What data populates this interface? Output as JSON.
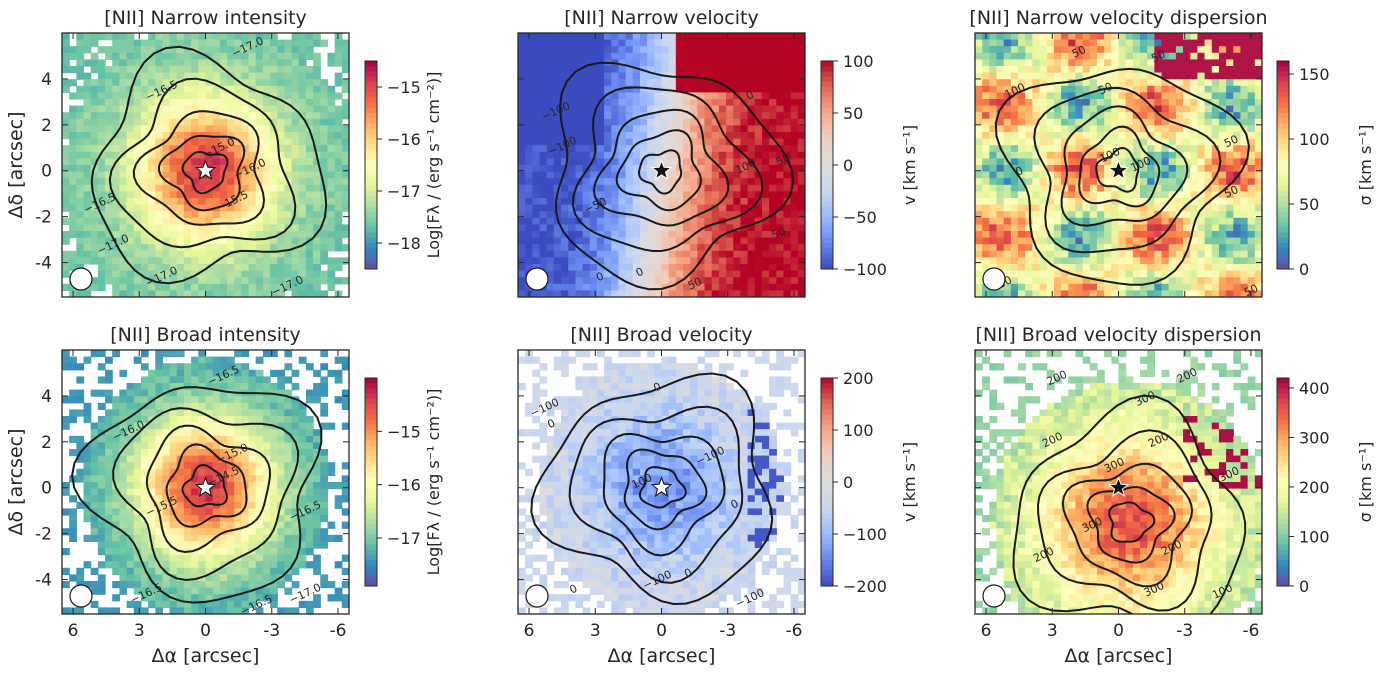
{
  "figure": {
    "tick_labels": {
      "x": [
        "6",
        "3",
        "0",
        "-3",
        "-6"
      ],
      "y": [
        "4",
        "2",
        "0",
        "-2",
        "-4"
      ]
    }
  },
  "chart_data": [
    {
      "type": "heatmap",
      "id": "p1",
      "title": "[NII] Narrow intensity",
      "ylabel": "Δδ [arcsec]",
      "xlabel": "",
      "xlim": [
        6.5,
        -6.5
      ],
      "ylim": [
        -5.5,
        6.0
      ],
      "colormap": "Spectral_r",
      "colorbar": {
        "label": "Log[Fλ / (erg s⁻¹ cm⁻²)]",
        "ticks": [
          -15,
          -16,
          -17,
          -18
        ],
        "tick_labels": [
          "−15",
          "−16",
          "−17",
          "−18"
        ],
        "vmin": -18.5,
        "vmax": -14.5
      },
      "field": {
        "kind": "peak",
        "center": [
          0,
          0
        ],
        "peak": -14.8,
        "edge": -17.6
      },
      "contour_labels": [
        {
          "text": "−15.0",
          "x": -0.6,
          "y": 1.0
        },
        {
          "text": "−15.5",
          "x": -1.2,
          "y": -1.3
        },
        {
          "text": "−16.0",
          "x": -2.0,
          "y": 0.1
        },
        {
          "text": "−16.5",
          "x": 2.0,
          "y": 3.5
        },
        {
          "text": "−17.0",
          "x": -1.9,
          "y": 5.4
        },
        {
          "text": "−16.5",
          "x": 4.8,
          "y": -1.4
        },
        {
          "text": "−17.0",
          "x": 4.2,
          "y": -3.2
        },
        {
          "text": "−17.0",
          "x": 2.0,
          "y": -4.6
        },
        {
          "text": "−17.0",
          "x": -3.7,
          "y": -5.0
        }
      ],
      "marker": {
        "symbol": "star",
        "x": 0,
        "y": 0,
        "fill": "#ffffff"
      }
    },
    {
      "type": "heatmap",
      "id": "p2",
      "title": "[NII] Narrow velocity",
      "ylabel": "",
      "xlabel": "",
      "xlim": [
        6.5,
        -6.5
      ],
      "ylim": [
        -5.5,
        6.0
      ],
      "colormap": "coolwarm",
      "colorbar": {
        "label": "v [km s⁻¹]",
        "ticks": [
          100,
          50,
          0,
          -50,
          -100
        ],
        "tick_labels": [
          "100",
          "50",
          "0",
          "−50",
          "−100"
        ],
        "vmin": -100,
        "vmax": 100
      },
      "field": {
        "kind": "velocity",
        "center": [
          0,
          0
        ],
        "amplitude": 100
      },
      "contour_labels": [
        {
          "text": "−100",
          "x": 4.8,
          "y": 2.6
        },
        {
          "text": "−100",
          "x": 4.5,
          "y": 1.1
        },
        {
          "text": "−50",
          "x": 3.0,
          "y": -1.5
        },
        {
          "text": "0",
          "x": -4.0,
          "y": 3.3
        },
        {
          "text": "0",
          "x": 2.8,
          "y": -4.6
        },
        {
          "text": "100",
          "x": -3.8,
          "y": 0.2
        },
        {
          "text": "50",
          "x": -5.5,
          "y": 0.5
        },
        {
          "text": "50",
          "x": -5.3,
          "y": -2.7
        },
        {
          "text": "50",
          "x": -1.5,
          "y": -4.9
        },
        {
          "text": "0",
          "x": 1.0,
          "y": -4.4
        }
      ],
      "marker": {
        "symbol": "star",
        "x": 0,
        "y": 0,
        "fill": "#111111"
      }
    },
    {
      "type": "heatmap",
      "id": "p3",
      "title": "[NII] Narrow velocity dispersion",
      "ylabel": "",
      "xlabel": "",
      "xlim": [
        6.5,
        -6.5
      ],
      "ylim": [
        -5.5,
        6.0
      ],
      "colormap": "Spectral_r",
      "colorbar": {
        "label": "σ [km s⁻¹]",
        "ticks": [
          150,
          100,
          50,
          0
        ],
        "tick_labels": [
          "150",
          "100",
          "50",
          "0"
        ],
        "vmin": 0,
        "vmax": 160
      },
      "field": {
        "kind": "patchy",
        "center": [
          0,
          0
        ],
        "base": 80,
        "spread": 55
      },
      "contour_labels": [
        {
          "text": "50",
          "x": 1.8,
          "y": 5.2
        },
        {
          "text": "50",
          "x": -1.8,
          "y": 5.0
        },
        {
          "text": "50",
          "x": 0.6,
          "y": 3.6
        },
        {
          "text": "100",
          "x": 4.7,
          "y": 3.5
        },
        {
          "text": "100",
          "x": 0.4,
          "y": 0.7
        },
        {
          "text": "100",
          "x": -1.0,
          "y": 0.3
        },
        {
          "text": "50",
          "x": -5.1,
          "y": 1.3
        },
        {
          "text": "50",
          "x": -5.1,
          "y": -0.9
        },
        {
          "text": "100",
          "x": 5.3,
          "y": -4.9
        },
        {
          "text": "50",
          "x": -6.0,
          "y": -5.2
        },
        {
          "text": "0",
          "x": 4.5,
          "y": 0.0
        }
      ],
      "marker": {
        "symbol": "star",
        "x": 0,
        "y": 0,
        "fill": "#111111"
      }
    },
    {
      "type": "heatmap",
      "id": "p4",
      "title": "[NII] Broad intensity",
      "ylabel": "Δδ [arcsec]",
      "xlabel": "Δα [arcsec]",
      "xlim": [
        6.5,
        -6.5
      ],
      "ylim": [
        -5.5,
        6.0
      ],
      "colormap": "Spectral_r",
      "colorbar": {
        "label": "Log[Fλ / (erg s⁻¹ cm⁻²)]",
        "ticks": [
          -15,
          -16,
          -17
        ],
        "tick_labels": [
          "−15",
          "−16",
          "−17"
        ],
        "vmin": -17.9,
        "vmax": -14.0
      },
      "field": {
        "kind": "peak",
        "center": [
          0,
          0
        ],
        "peak": -14.3,
        "edge": -17.3
      },
      "contour_labels": [
        {
          "text": "−16.5",
          "x": -0.8,
          "y": 4.9
        },
        {
          "text": "−16.0",
          "x": 3.5,
          "y": 2.5
        },
        {
          "text": "−15.0",
          "x": -1.2,
          "y": 1.5
        },
        {
          "text": "−14.5",
          "x": -0.8,
          "y": 0.5
        },
        {
          "text": "−15.5",
          "x": 2.0,
          "y": -0.8
        },
        {
          "text": "−16.5",
          "x": -4.5,
          "y": -1.0
        },
        {
          "text": "−16.5",
          "x": 2.7,
          "y": -4.6
        },
        {
          "text": "−16.5",
          "x": -2.3,
          "y": -5.1
        },
        {
          "text": "−17.0",
          "x": -4.5,
          "y": -4.6
        }
      ],
      "marker": {
        "symbol": "star",
        "x": 0,
        "y": 0,
        "fill": "#ffffff"
      }
    },
    {
      "type": "heatmap",
      "id": "p5",
      "title": "[NII] Broad velocity",
      "ylabel": "",
      "xlabel": "Δα [arcsec]",
      "xlim": [
        6.5,
        -6.5
      ],
      "ylim": [
        -5.5,
        6.0
      ],
      "colormap": "coolwarm",
      "colorbar": {
        "label": "v [km s⁻¹]",
        "ticks": [
          200,
          100,
          0,
          -100,
          -200
        ],
        "tick_labels": [
          "200",
          "100",
          "0",
          "−100",
          "−200"
        ],
        "vmin": -200,
        "vmax": 200
      },
      "field": {
        "kind": "blueish",
        "center": [
          0,
          0
        ],
        "amplitude": 120
      },
      "contour_labels": [
        {
          "text": "−100",
          "x": 5.3,
          "y": 3.5
        },
        {
          "text": "0",
          "x": 5.0,
          "y": 2.8
        },
        {
          "text": "0",
          "x": 0.2,
          "y": 4.4
        },
        {
          "text": "−100",
          "x": -2.2,
          "y": 1.4
        },
        {
          "text": "100",
          "x": 0.9,
          "y": 0.3
        },
        {
          "text": "0",
          "x": -3.3,
          "y": -0.7
        },
        {
          "text": "0",
          "x": 4.0,
          "y": -4.4
        },
        {
          "text": "−100",
          "x": 0.2,
          "y": -4.0
        },
        {
          "text": "0",
          "x": -1.2,
          "y": -3.7
        },
        {
          "text": "−100",
          "x": -4.0,
          "y": -4.8
        }
      ],
      "marker": {
        "symbol": "star",
        "x": 0,
        "y": 0,
        "fill": "#ffffff"
      }
    },
    {
      "type": "heatmap",
      "id": "p6",
      "title": "[NII] Broad velocity dispersion",
      "ylabel": "",
      "xlabel": "Δα [arcsec]",
      "xlim": [
        6.5,
        -6.5
      ],
      "ylim": [
        -5.5,
        6.0
      ],
      "colormap": "Spectral_r",
      "colorbar": {
        "label": "σ [km s⁻¹]",
        "ticks": [
          400,
          300,
          200,
          100,
          0
        ],
        "tick_labels": [
          "400",
          "300",
          "200",
          "100",
          "0"
        ],
        "vmin": 0,
        "vmax": 420
      },
      "field": {
        "kind": "peak_low",
        "center": [
          -0.5,
          -1.5
        ],
        "peak": 360,
        "edge": 130
      },
      "contour_labels": [
        {
          "text": "200",
          "x": 2.8,
          "y": 4.8
        },
        {
          "text": "200",
          "x": -3.1,
          "y": 4.9
        },
        {
          "text": "300",
          "x": -1.2,
          "y": 3.9
        },
        {
          "text": "200",
          "x": 3.0,
          "y": 2.1
        },
        {
          "text": "200",
          "x": -1.8,
          "y": 2.1
        },
        {
          "text": "300",
          "x": 0.2,
          "y": 1.0
        },
        {
          "text": "300",
          "x": -5.0,
          "y": 0.6
        },
        {
          "text": "300",
          "x": 1.2,
          "y": -1.6
        },
        {
          "text": "200",
          "x": -2.4,
          "y": -2.6
        },
        {
          "text": "200",
          "x": 3.4,
          "y": -2.9
        },
        {
          "text": "300",
          "x": -1.6,
          "y": -4.4
        },
        {
          "text": "100",
          "x": -4.7,
          "y": -4.5
        }
      ],
      "marker": {
        "symbol": "star",
        "x": 0,
        "y": 0,
        "fill": "#111111"
      }
    }
  ]
}
